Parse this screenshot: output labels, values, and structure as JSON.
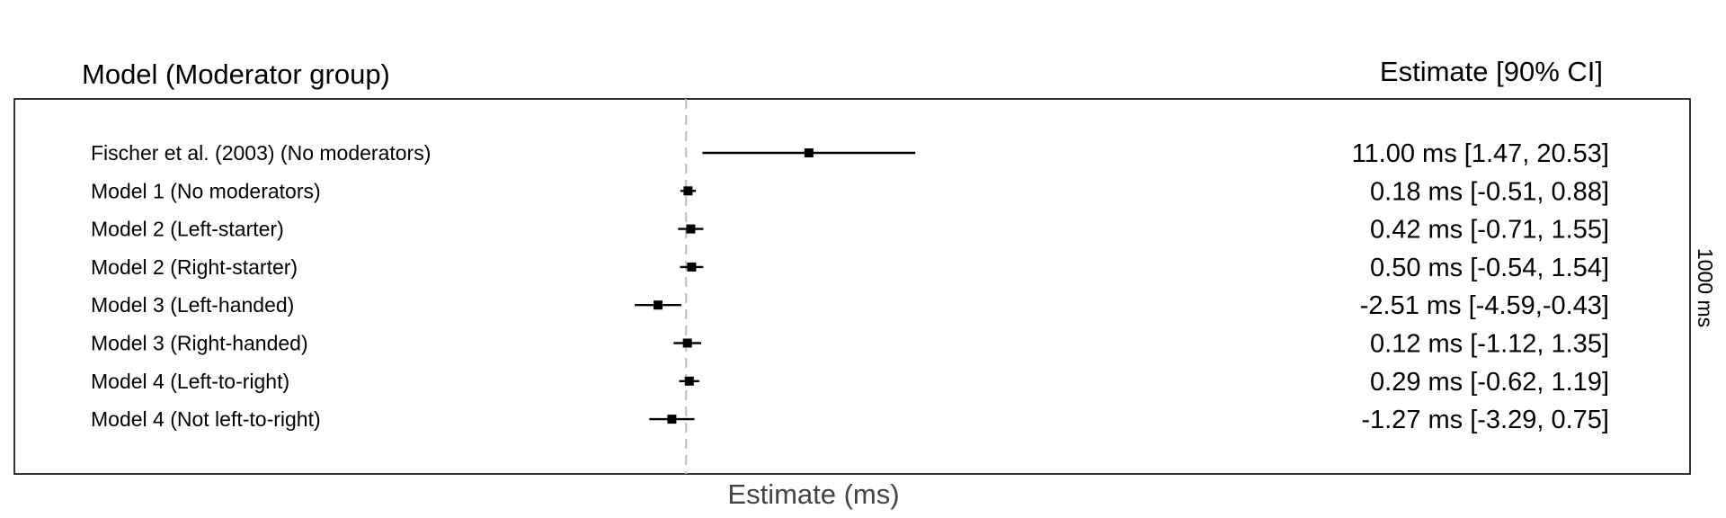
{
  "chart_data": {
    "type": "forest",
    "headers": {
      "left": "Model (Moderator group)",
      "right": "Estimate [90% CI]"
    },
    "xlabel": "Estimate (ms)",
    "side_label": "1000 ms",
    "reference_line": 0,
    "xlim": [
      -7.5,
      28
    ],
    "rows": [
      {
        "label": "Fischer et al. (2003) (No moderators)",
        "estimate": 11.0,
        "lower": 1.47,
        "upper": 20.53,
        "text": "11.00 ms [1.47, 20.53]"
      },
      {
        "label": "Model 1 (No moderators)",
        "estimate": 0.18,
        "lower": -0.51,
        "upper": 0.88,
        "text": "0.18 ms [-0.51, 0.88]"
      },
      {
        "label": "Model 2 (Left-starter)",
        "estimate": 0.42,
        "lower": -0.71,
        "upper": 1.55,
        "text": "0.42 ms [-0.71, 1.55]"
      },
      {
        "label": "Model 2 (Right-starter)",
        "estimate": 0.5,
        "lower": -0.54,
        "upper": 1.54,
        "text": "0.50 ms [-0.54, 1.54]"
      },
      {
        "label": "Model 3 (Left-handed)",
        "estimate": -2.51,
        "lower": -4.59,
        "upper": -0.43,
        "text": "-2.51 ms [-4.59,-0.43]"
      },
      {
        "label": "Model 3 (Right-handed)",
        "estimate": 0.12,
        "lower": -1.12,
        "upper": 1.35,
        "text": "0.12 ms [-1.12, 1.35]"
      },
      {
        "label": "Model 4 (Left-to-right)",
        "estimate": 0.29,
        "lower": -0.62,
        "upper": 1.19,
        "text": "0.29 ms [-0.62, 1.19]"
      },
      {
        "label": "Model 4 (Not left-to-right)",
        "estimate": -1.27,
        "lower": -3.29,
        "upper": 0.75,
        "text": "-1.27 ms [-3.29, 0.75]"
      }
    ]
  }
}
